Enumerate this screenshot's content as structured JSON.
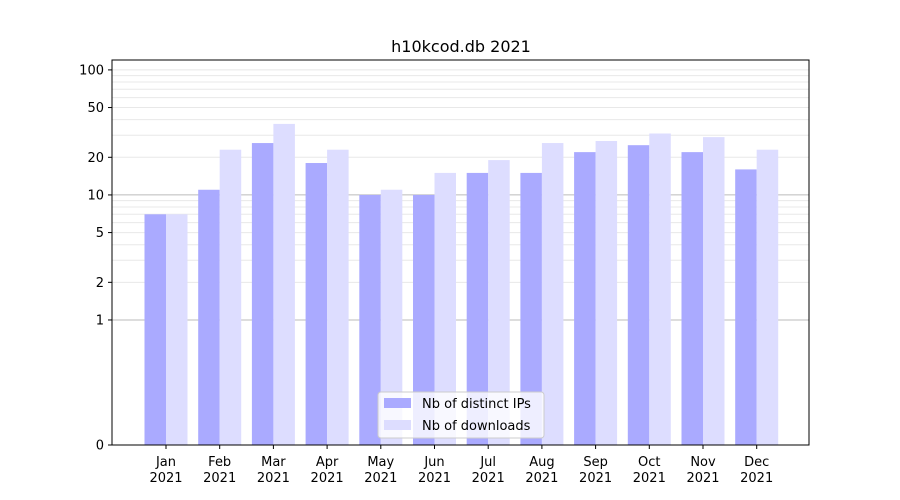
{
  "chart_data": {
    "type": "bar",
    "title": "h10kcod.db 2021",
    "xlabel": "",
    "ylabel": "",
    "y_scale": "symlog",
    "ylim": [
      0,
      120
    ],
    "y_ticks": [
      0,
      1,
      2,
      5,
      10,
      20,
      50,
      100
    ],
    "major_grid_lines": [
      1,
      10
    ],
    "categories": [
      {
        "month": "Jan",
        "year": "2021"
      },
      {
        "month": "Feb",
        "year": "2021"
      },
      {
        "month": "Mar",
        "year": "2021"
      },
      {
        "month": "Apr",
        "year": "2021"
      },
      {
        "month": "May",
        "year": "2021"
      },
      {
        "month": "Jun",
        "year": "2021"
      },
      {
        "month": "Jul",
        "year": "2021"
      },
      {
        "month": "Aug",
        "year": "2021"
      },
      {
        "month": "Sep",
        "year": "2021"
      },
      {
        "month": "Oct",
        "year": "2021"
      },
      {
        "month": "Nov",
        "year": "2021"
      },
      {
        "month": "Dec",
        "year": "2021"
      }
    ],
    "series": [
      {
        "name": "Nb of distinct IPs",
        "color": "#aaaaff",
        "values": [
          7,
          11,
          26,
          18,
          10,
          10,
          15,
          15,
          22,
          25,
          22,
          16
        ]
      },
      {
        "name": "Nb of downloads",
        "color": "#ddddff",
        "values": [
          7,
          23,
          37,
          23,
          11,
          15,
          19,
          26,
          27,
          31,
          29,
          23
        ]
      }
    ],
    "legend_position": "bottom-center",
    "grid": "y"
  }
}
